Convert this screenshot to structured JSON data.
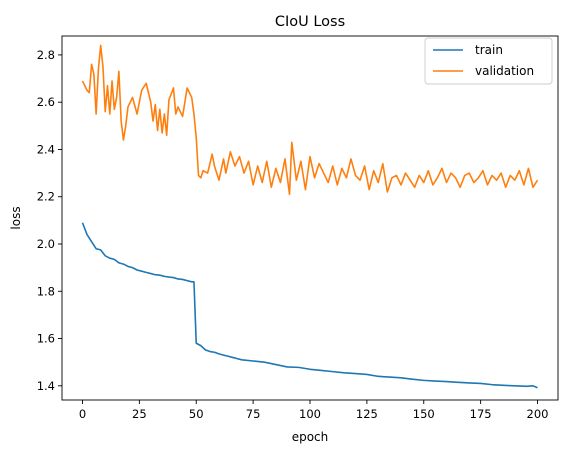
{
  "chart_data": {
    "type": "line",
    "title": "CIoU Loss",
    "xlabel": "epoch",
    "ylabel": "loss",
    "xlim": [
      -9,
      209
    ],
    "ylim": [
      1.34,
      2.88
    ],
    "xticks": [
      0,
      25,
      50,
      75,
      100,
      125,
      150,
      175,
      200
    ],
    "yticks": [
      1.4,
      1.6,
      1.8,
      2.0,
      2.2,
      2.4,
      2.6,
      2.8
    ],
    "ytick_labels": [
      "1.4",
      "1.6",
      "1.8",
      "2.0",
      "2.2",
      "2.4",
      "2.6",
      "2.8"
    ],
    "grid": false,
    "legend_position": "upper-right",
    "series": [
      {
        "name": "train",
        "color": "#1f77b4",
        "x": [
          0,
          2,
          4,
          6,
          8,
          10,
          12,
          14,
          16,
          18,
          20,
          22,
          24,
          26,
          28,
          30,
          32,
          34,
          36,
          38,
          40,
          42,
          44,
          46,
          48,
          49,
          50,
          52,
          54,
          56,
          58,
          60,
          62,
          64,
          66,
          68,
          70,
          75,
          80,
          85,
          90,
          95,
          100,
          105,
          110,
          115,
          120,
          125,
          130,
          135,
          140,
          145,
          150,
          155,
          160,
          165,
          170,
          175,
          180,
          185,
          190,
          195,
          198,
          200
        ],
        "y": [
          2.09,
          2.04,
          2.01,
          1.98,
          1.975,
          1.95,
          1.94,
          1.935,
          1.92,
          1.915,
          1.905,
          1.9,
          1.89,
          1.885,
          1.88,
          1.875,
          1.87,
          1.868,
          1.863,
          1.86,
          1.858,
          1.852,
          1.85,
          1.845,
          1.84,
          1.84,
          1.58,
          1.57,
          1.552,
          1.545,
          1.542,
          1.535,
          1.53,
          1.525,
          1.52,
          1.515,
          1.51,
          1.505,
          1.5,
          1.49,
          1.48,
          1.478,
          1.47,
          1.465,
          1.46,
          1.455,
          1.452,
          1.448,
          1.44,
          1.437,
          1.434,
          1.428,
          1.423,
          1.42,
          1.418,
          1.415,
          1.412,
          1.41,
          1.405,
          1.402,
          1.4,
          1.398,
          1.4,
          1.392
        ]
      },
      {
        "name": "validation",
        "color": "#ff7f0e",
        "x": [
          0,
          2,
          3,
          4,
          5,
          6,
          7,
          8,
          9,
          10,
          11,
          12,
          13,
          14,
          15,
          16,
          17,
          18,
          19,
          20,
          22,
          24,
          26,
          28,
          30,
          31,
          32,
          33,
          34,
          35,
          36,
          37,
          38,
          40,
          41,
          42,
          44,
          46,
          48,
          49,
          50,
          51,
          52,
          53,
          55,
          57,
          58,
          60,
          62,
          63,
          65,
          67,
          69,
          71,
          73,
          75,
          77,
          79,
          81,
          83,
          85,
          87,
          89,
          91,
          92,
          94,
          96,
          98,
          100,
          102,
          104,
          106,
          108,
          110,
          112,
          114,
          116,
          118,
          120,
          122,
          124,
          126,
          128,
          130,
          132,
          134,
          136,
          138,
          140,
          142,
          144,
          146,
          148,
          150,
          152,
          154,
          156,
          158,
          160,
          162,
          164,
          166,
          168,
          170,
          172,
          174,
          176,
          178,
          180,
          182,
          184,
          186,
          188,
          190,
          192,
          194,
          196,
          198,
          200
        ],
        "y": [
          2.69,
          2.65,
          2.64,
          2.76,
          2.72,
          2.55,
          2.74,
          2.84,
          2.75,
          2.56,
          2.67,
          2.55,
          2.69,
          2.57,
          2.62,
          2.73,
          2.52,
          2.44,
          2.5,
          2.58,
          2.62,
          2.55,
          2.65,
          2.68,
          2.6,
          2.52,
          2.59,
          2.48,
          2.57,
          2.47,
          2.55,
          2.46,
          2.61,
          2.66,
          2.55,
          2.58,
          2.54,
          2.66,
          2.62,
          2.55,
          2.45,
          2.29,
          2.28,
          2.31,
          2.3,
          2.38,
          2.33,
          2.27,
          2.36,
          2.3,
          2.39,
          2.33,
          2.37,
          2.3,
          2.35,
          2.25,
          2.33,
          2.26,
          2.35,
          2.24,
          2.32,
          2.26,
          2.36,
          2.21,
          2.43,
          2.27,
          2.35,
          2.23,
          2.37,
          2.28,
          2.34,
          2.3,
          2.26,
          2.33,
          2.25,
          2.32,
          2.28,
          2.36,
          2.29,
          2.27,
          2.33,
          2.23,
          2.31,
          2.26,
          2.34,
          2.22,
          2.28,
          2.29,
          2.25,
          2.3,
          2.27,
          2.24,
          2.29,
          2.26,
          2.31,
          2.25,
          2.28,
          2.32,
          2.26,
          2.3,
          2.28,
          2.24,
          2.29,
          2.3,
          2.26,
          2.28,
          2.31,
          2.25,
          2.29,
          2.27,
          2.3,
          2.24,
          2.29,
          2.27,
          2.31,
          2.25,
          2.32,
          2.24,
          2.27
        ]
      }
    ]
  }
}
